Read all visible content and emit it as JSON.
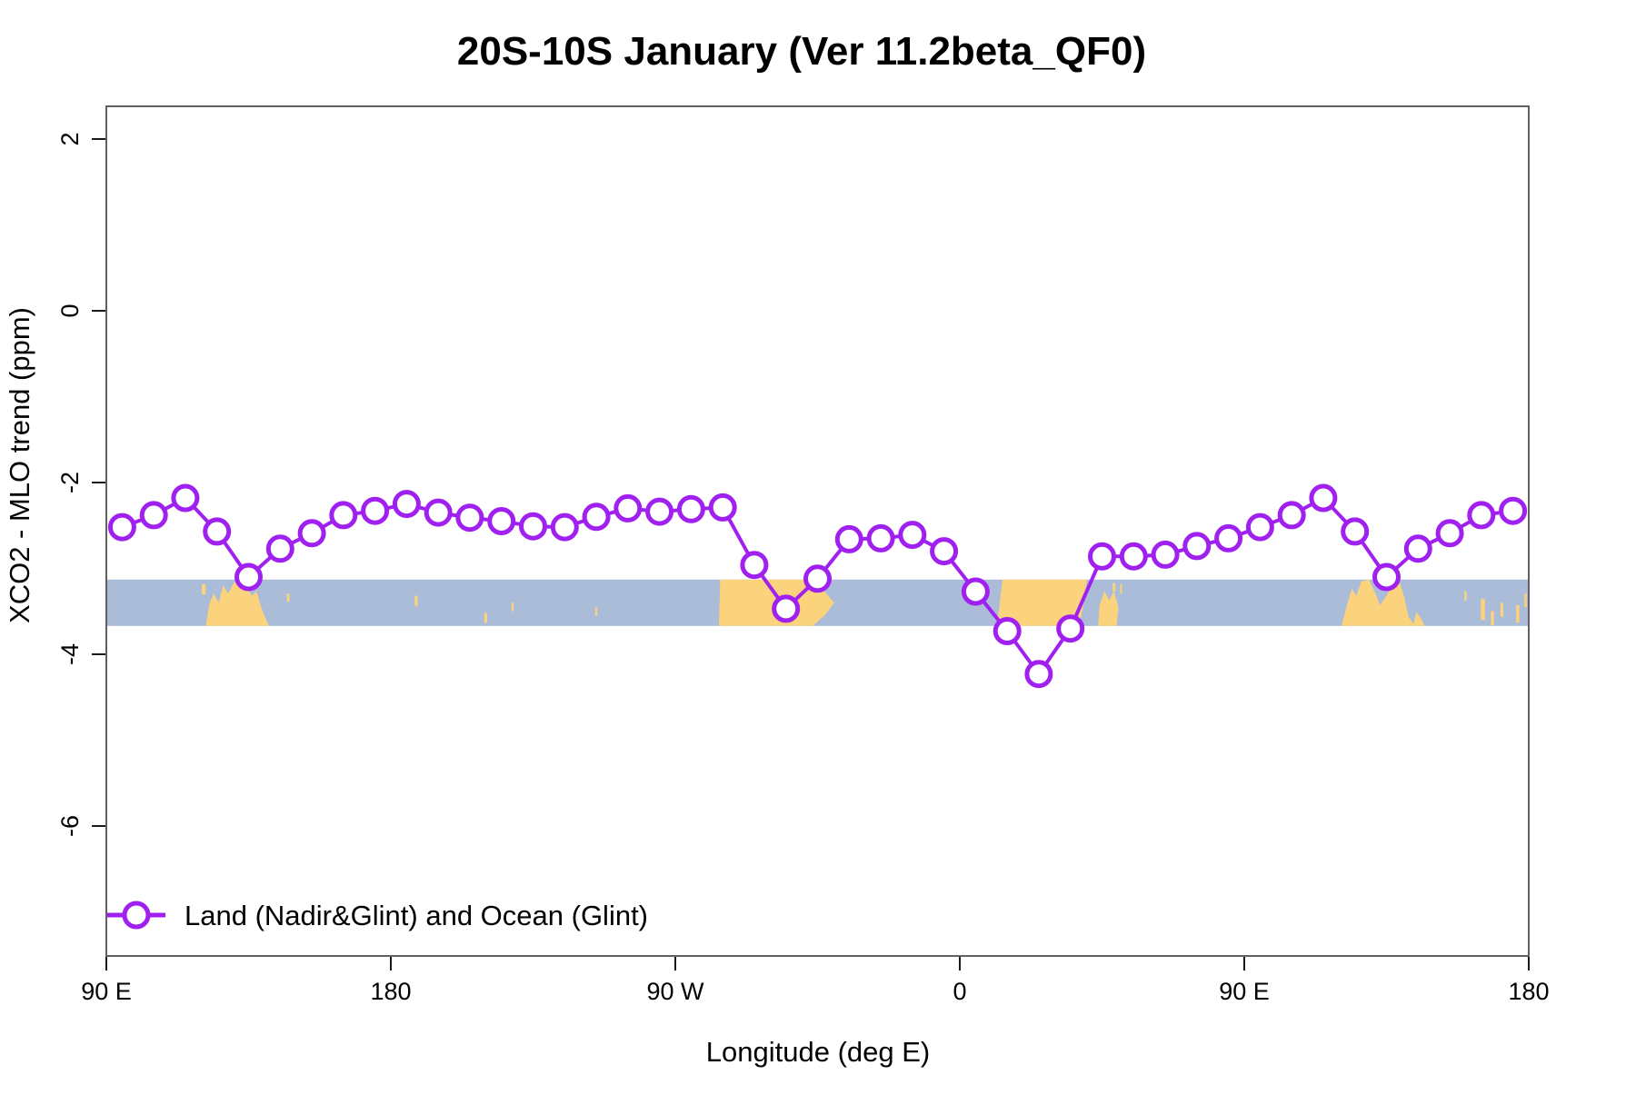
{
  "title": "20S-10S January (Ver 11.2beta_QF0)",
  "colors": {
    "series": "#A020F0",
    "ocean": "#AABCD8",
    "land": "#FCD37D",
    "axis_box": "#606060",
    "tick": "#1a1a1a",
    "text": "#000000"
  },
  "legend": {
    "items": [
      {
        "label": "Land (Nadir&Glint) and Ocean (Glint)",
        "marker": "circle-line",
        "color": "#A020F0"
      }
    ]
  },
  "chart_data": {
    "type": "line",
    "title": "20S-10S January (Ver 11.2beta_QF0)",
    "xlabel": "Longitude (deg E)",
    "ylabel": "XCO2 - MLO trend (ppm)",
    "grid": false,
    "legend_position": "bottom-left-inside",
    "x_axis": {
      "min": 90,
      "max": 540,
      "ticks": [
        {
          "lon": 90,
          "label": "90 E"
        },
        {
          "lon": 180,
          "label": "180"
        },
        {
          "lon": 270,
          "label": "90 W"
        },
        {
          "lon": 360,
          "label": "0"
        },
        {
          "lon": 450,
          "label": "90 E"
        },
        {
          "lon": 540,
          "label": "180"
        }
      ]
    },
    "y_axis": {
      "min": -7.5,
      "max": 2.4,
      "ticks": [
        {
          "value": 2,
          "label": "2"
        },
        {
          "value": 0,
          "label": "0"
        },
        {
          "value": -2,
          "label": "-2"
        },
        {
          "value": -4,
          "label": "-4"
        },
        {
          "value": -6,
          "label": "-6"
        }
      ]
    },
    "series": [
      {
        "name": "Land (Nadir&Glint) and Ocean (Glint)",
        "marker": "open-circle",
        "x": [
          95,
          105,
          115,
          125,
          135,
          145,
          155,
          165,
          175,
          185,
          195,
          205,
          215,
          225,
          235,
          245,
          255,
          265,
          275,
          285,
          295,
          305,
          315,
          325,
          335,
          345,
          355,
          365,
          375,
          385,
          395,
          405,
          415,
          425,
          435,
          445,
          455,
          465,
          475,
          485,
          495,
          505,
          515,
          525,
          535
        ],
        "y": [
          -2.52,
          -2.38,
          -2.18,
          -2.57,
          -3.1,
          -2.77,
          -2.59,
          -2.38,
          -2.33,
          -2.25,
          -2.35,
          -2.41,
          -2.45,
          -2.51,
          -2.52,
          -2.4,
          -2.3,
          -2.34,
          -2.31,
          -2.29,
          -2.96,
          -3.47,
          -3.12,
          -2.66,
          -2.65,
          -2.61,
          -2.8,
          -3.27,
          -3.73,
          -4.23,
          -3.7,
          -2.86,
          -2.86,
          -2.84,
          -2.74,
          -2.65,
          -2.52,
          -2.38,
          -2.18,
          -2.57,
          -3.1,
          -2.77,
          -2.59,
          -2.38,
          -2.33
        ]
      }
    ],
    "map_strip": {
      "band_top_ppm": -3.13,
      "band_bottom_ppm": -3.67,
      "ocean_color": "#AABCD8",
      "land_color": "#FCD37D",
      "land_polygons": {
        "australia_west_copy": [
          [
            121.5,
            1
          ],
          [
            122.5,
            0.55
          ],
          [
            124,
            0.3
          ],
          [
            125.5,
            0.5
          ],
          [
            127,
            0.12
          ],
          [
            128.5,
            0.3
          ],
          [
            130.5,
            0.06
          ],
          [
            132.5,
            0.2
          ],
          [
            134,
            0.1
          ],
          [
            136,
            0.35
          ],
          [
            137.5,
            0.25
          ],
          [
            139,
            0.6
          ],
          [
            140.5,
            0.85
          ],
          [
            141.5,
            1
          ]
        ],
        "south_america": [
          [
            283.8,
            1
          ],
          [
            284.2,
            0
          ],
          [
            313,
            0
          ],
          [
            317,
            0.25
          ],
          [
            320.3,
            0.5
          ],
          [
            317.5,
            0.75
          ],
          [
            313.5,
            1
          ]
        ],
        "africa": [
          [
            371.8,
            1
          ],
          [
            373.5,
            0
          ],
          [
            400.2,
            0
          ],
          [
            399.5,
            0.4
          ],
          [
            397.8,
            1
          ]
        ],
        "madagascar": [
          [
            403.8,
            1
          ],
          [
            404.2,
            0.55
          ],
          [
            405.8,
            0.25
          ],
          [
            407.2,
            0.45
          ],
          [
            408.8,
            0.25
          ],
          [
            410.2,
            0.6
          ],
          [
            409.6,
            1
          ]
        ],
        "australia_east_copy": [
          [
            480.8,
            1
          ],
          [
            482.5,
            0.55
          ],
          [
            484,
            0.2
          ],
          [
            485.5,
            0.35
          ],
          [
            487,
            0.04
          ],
          [
            489.5,
            0
          ],
          [
            491.5,
            0.3
          ],
          [
            493,
            0.55
          ],
          [
            495,
            0.35
          ],
          [
            497,
            0.06
          ],
          [
            499,
            0.02
          ],
          [
            500.5,
            0.35
          ],
          [
            502,
            0.8
          ],
          [
            503.5,
            0.95
          ],
          [
            504.5,
            0.7
          ],
          [
            506,
            0.85
          ],
          [
            507,
            1
          ]
        ]
      },
      "island_speckles": [
        [
          120.8,
          0.1,
          1.2,
          0.22
        ],
        [
          130.8,
          0.05,
          1.0,
          0.18
        ],
        [
          147.5,
          0.3,
          0.8,
          0.18
        ],
        [
          188,
          0.35,
          0.9,
          0.22
        ],
        [
          210,
          0.72,
          0.9,
          0.22
        ],
        [
          218.5,
          0.5,
          0.7,
          0.18
        ],
        [
          245,
          0.6,
          0.7,
          0.18
        ],
        [
          364.5,
          0.28,
          0.8,
          0.2
        ],
        [
          408.8,
          0.08,
          0.9,
          0.18
        ],
        [
          411,
          0.1,
          0.6,
          0.2
        ],
        [
          520,
          0.25,
          0.7,
          0.2
        ],
        [
          525.5,
          0.42,
          1.3,
          0.45
        ],
        [
          528.5,
          0.68,
          1.0,
          0.3
        ],
        [
          531.5,
          0.5,
          0.9,
          0.3
        ],
        [
          536.5,
          0.55,
          1.0,
          0.38
        ],
        [
          539,
          0.3,
          0.7,
          0.3
        ]
      ]
    }
  }
}
